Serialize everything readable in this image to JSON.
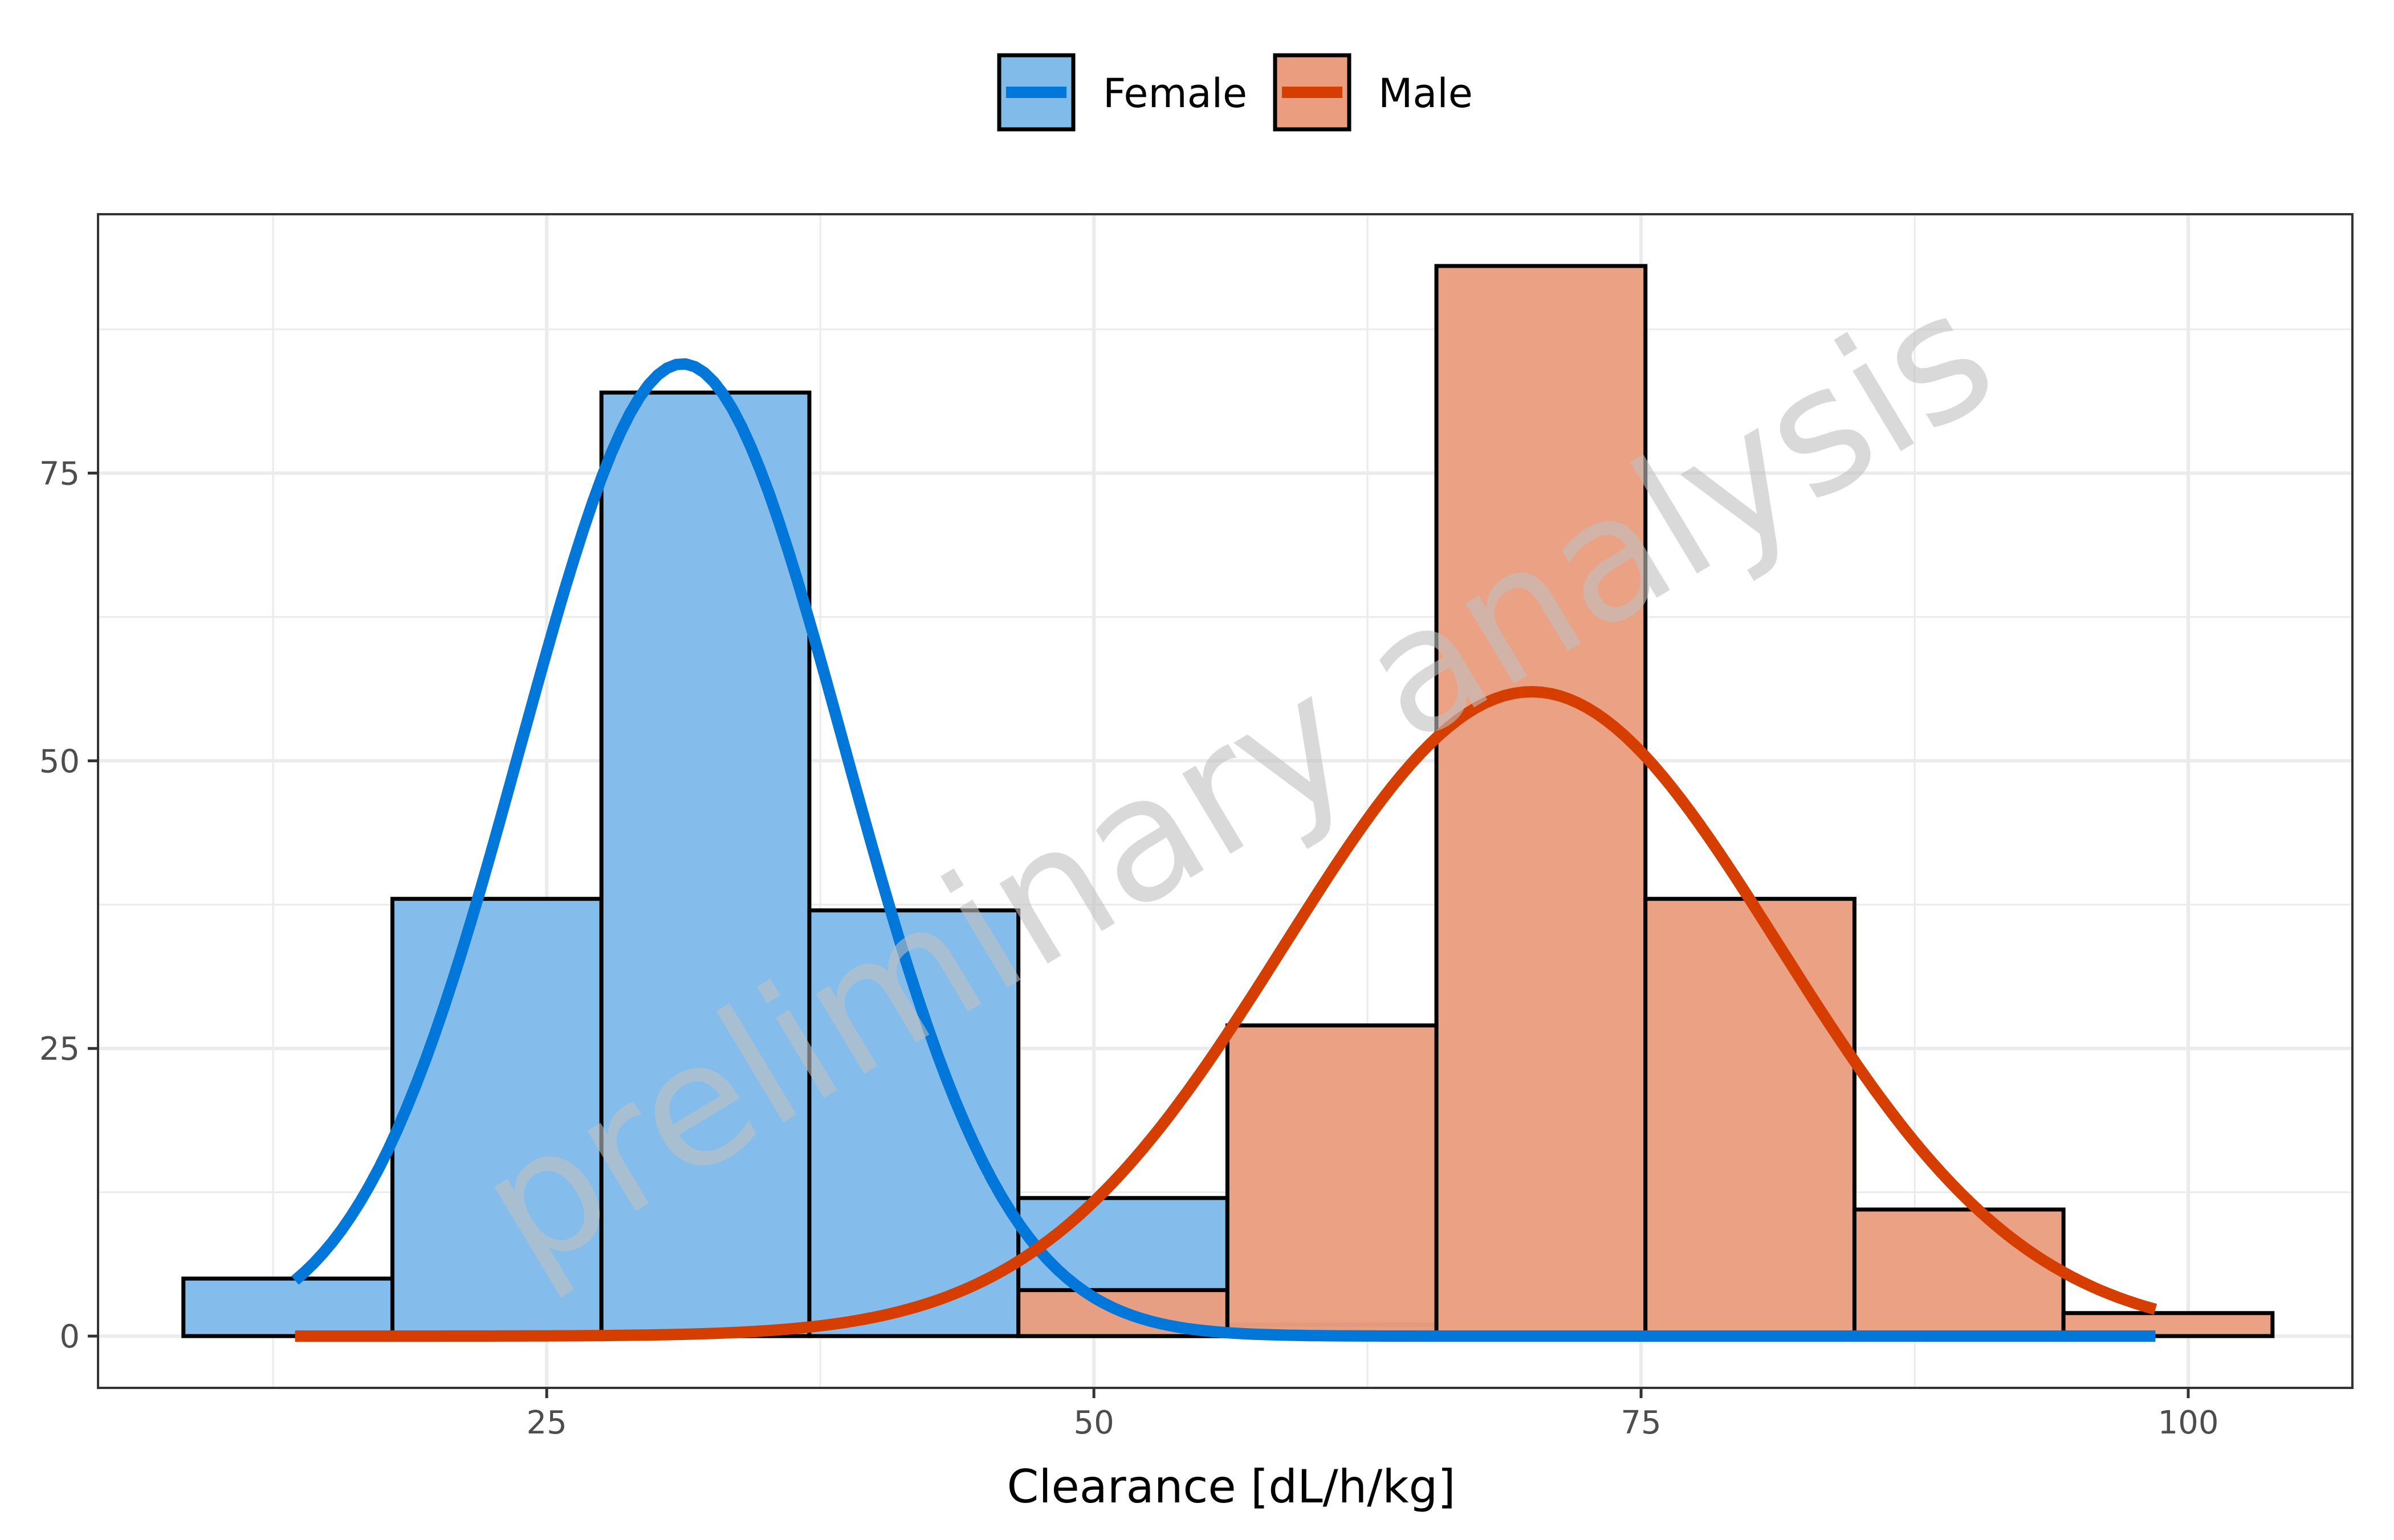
{
  "chart_data": {
    "type": "histogram",
    "xlabel": "Clearance [dL/h/kg]",
    "ylabel": "",
    "xlim": [
      4.5,
      107.5
    ],
    "ylim": [
      -4.5,
      97.5
    ],
    "x_ticks": [
      25,
      50,
      75,
      100
    ],
    "y_ticks": [
      0,
      25,
      50,
      75
    ],
    "grid": true,
    "legend_position": "top",
    "watermark": "preliminary analysis",
    "series": [
      {
        "name": "Female",
        "color": "#0077d9",
        "fill": "#80bbea",
        "bins": [
          {
            "x0": 8.4,
            "x1": 17.95,
            "count": 5
          },
          {
            "x0": 17.95,
            "x1": 27.5,
            "count": 38
          },
          {
            "x0": 27.5,
            "x1": 37.0,
            "count": 82
          },
          {
            "x0": 37.0,
            "x1": 46.55,
            "count": 37
          },
          {
            "x0": 46.55,
            "x1": 56.1,
            "count": 12
          },
          {
            "x0": 56.1,
            "x1": 65.65,
            "count": 1
          }
        ],
        "density_curve": {
          "mean": 31.2,
          "sd": 7.4,
          "peak": 84.5,
          "x_range": [
            13.5,
            98.5
          ]
        }
      },
      {
        "name": "Male",
        "color": "#d63e00",
        "fill": "#ea9e7f",
        "bins": [
          {
            "x0": 46.55,
            "x1": 56.1,
            "count": 4
          },
          {
            "x0": 56.1,
            "x1": 65.65,
            "count": 27
          },
          {
            "x0": 65.65,
            "x1": 75.2,
            "count": 93
          },
          {
            "x0": 75.2,
            "x1": 84.75,
            "count": 38
          },
          {
            "x0": 84.75,
            "x1": 94.3,
            "count": 11
          },
          {
            "x0": 94.3,
            "x1": 103.85,
            "count": 2
          }
        ],
        "density_curve": {
          "mean": 70.0,
          "sd": 11.3,
          "peak": 56.0,
          "x_range": [
            13.5,
            98.5
          ]
        }
      }
    ]
  }
}
